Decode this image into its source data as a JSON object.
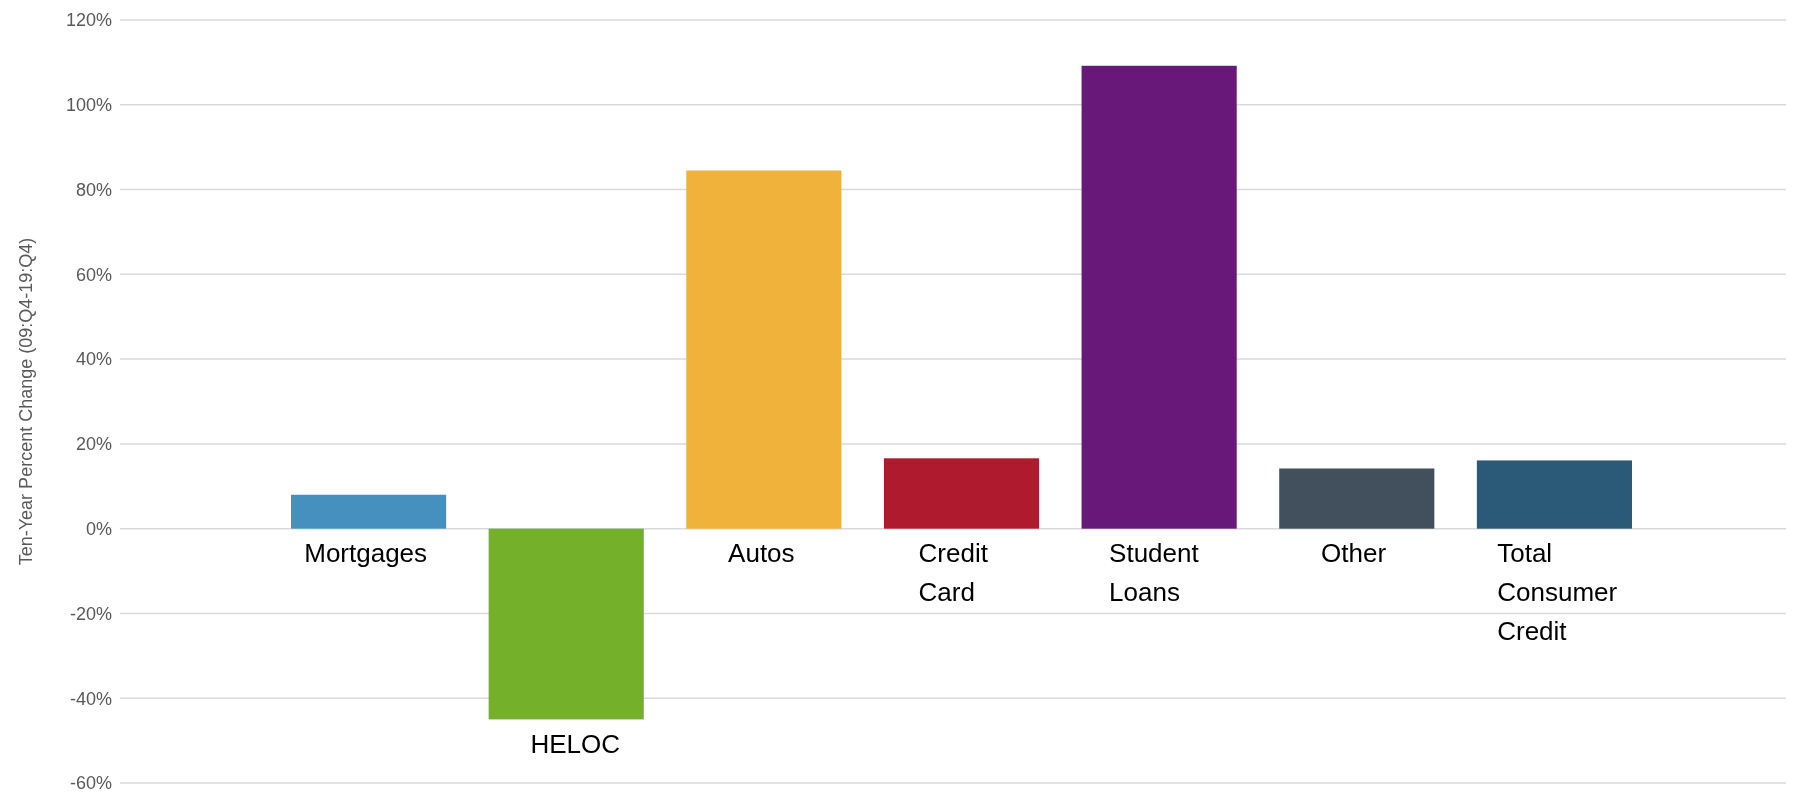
{
  "chart_data": {
    "type": "bar",
    "ylabel": "Ten-Year Percent Change (09:Q4-19:Q4)",
    "categories": [
      "Mortgages",
      "HELOC",
      "Autos",
      "Credit Card",
      "Student Loans",
      "Other",
      "Total Consumer Credit"
    ],
    "values": [
      8,
      -45,
      84.5,
      16.6,
      109.2,
      14.2,
      16.1
    ],
    "colors": [
      "#4590bf",
      "#74b02a",
      "#f0b23b",
      "#b01a2e",
      "#671878",
      "#41505c",
      "#2a5a78"
    ],
    "ylim": [
      -60,
      120
    ],
    "yticks": [
      {
        "value": -60,
        "label": "-60%"
      },
      {
        "value": -40,
        "label": "-40%"
      },
      {
        "value": -20,
        "label": "-20%"
      },
      {
        "value": 0,
        "label": "0%"
      },
      {
        "value": 20,
        "label": "20%"
      },
      {
        "value": 40,
        "label": "40%"
      },
      {
        "value": 60,
        "label": "60%"
      },
      {
        "value": 80,
        "label": "80%"
      },
      {
        "value": 100,
        "label": "100%"
      },
      {
        "value": 120,
        "label": "120%"
      }
    ],
    "grid": "y"
  }
}
